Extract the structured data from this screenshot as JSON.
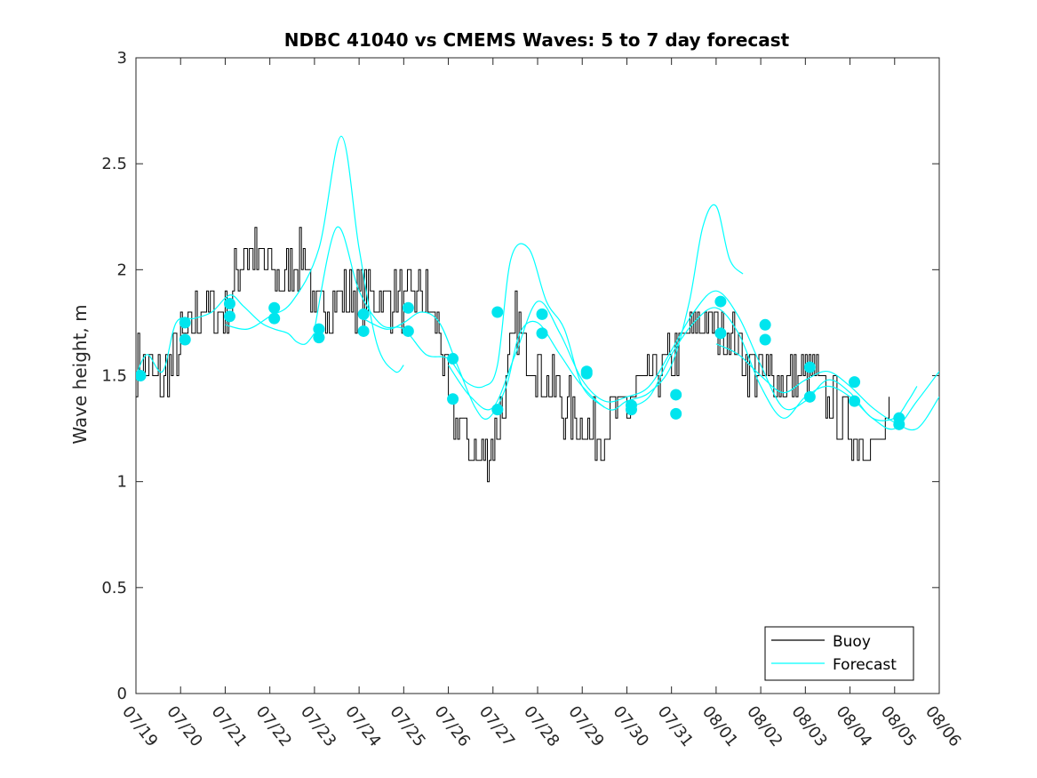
{
  "chart_data": {
    "type": "line",
    "title": "NDBC 41040 vs CMEMS Waves: 5 to 7 day forecast",
    "xlabel": "",
    "ylabel": "Wave height, m",
    "xlim": [
      "07/19",
      "08/06"
    ],
    "ylim": [
      0,
      3
    ],
    "x_ticks": [
      "07/19",
      "07/20",
      "07/21",
      "07/22",
      "07/23",
      "07/24",
      "07/25",
      "07/26",
      "07/27",
      "07/28",
      "07/29",
      "07/30",
      "07/31",
      "08/01",
      "08/02",
      "08/03",
      "08/04",
      "08/05",
      "08/06"
    ],
    "y_ticks": [
      "0",
      "0.5",
      "1",
      "1.5",
      "2",
      "2.5",
      "3"
    ],
    "x_unit": "day offset from 07/19",
    "legend": {
      "placement": "bottom-right",
      "entries": [
        {
          "label": "Buoy",
          "color": "#000000"
        },
        {
          "label": "Forecast",
          "color": "#00ffff"
        }
      ]
    },
    "colors": {
      "buoy": "#000000",
      "forecast": "#00ffff",
      "markers": "#00e5ee"
    },
    "series": [
      {
        "name": "Buoy",
        "style": "step-noisy",
        "points": [
          [
            0,
            1.55
          ],
          [
            0.3,
            1.5
          ],
          [
            0.6,
            1.48
          ],
          [
            0.9,
            1.6
          ],
          [
            1.2,
            1.72
          ],
          [
            1.5,
            1.83
          ],
          [
            1.8,
            1.78
          ],
          [
            2.1,
            1.85
          ],
          [
            2.4,
            2.1
          ],
          [
            2.7,
            2.05
          ],
          [
            3.0,
            2.0
          ],
          [
            3.3,
            1.95
          ],
          [
            3.6,
            2.05
          ],
          [
            3.8,
            2.08
          ],
          [
            4.0,
            1.75
          ],
          [
            4.3,
            1.85
          ],
          [
            4.6,
            1.88
          ],
          [
            5.0,
            1.85
          ],
          [
            5.5,
            1.88
          ],
          [
            6.0,
            1.85
          ],
          [
            6.4,
            1.9
          ],
          [
            6.8,
            1.7
          ],
          [
            7.0,
            1.35
          ],
          [
            7.3,
            1.25
          ],
          [
            7.6,
            1.12
          ],
          [
            7.9,
            1.15
          ],
          [
            8.2,
            1.35
          ],
          [
            8.5,
            1.75
          ],
          [
            8.8,
            1.6
          ],
          [
            9.1,
            1.5
          ],
          [
            9.5,
            1.38
          ],
          [
            9.9,
            1.3
          ],
          [
            10.2,
            1.22
          ],
          [
            10.6,
            1.28
          ],
          [
            11.0,
            1.35
          ],
          [
            11.4,
            1.45
          ],
          [
            11.8,
            1.55
          ],
          [
            12.2,
            1.6
          ],
          [
            12.6,
            1.75
          ],
          [
            13.0,
            1.73
          ],
          [
            13.3,
            1.7
          ],
          [
            13.6,
            1.6
          ],
          [
            14.0,
            1.5
          ],
          [
            14.4,
            1.48
          ],
          [
            14.8,
            1.5
          ],
          [
            15.2,
            1.48
          ],
          [
            15.6,
            1.35
          ],
          [
            16.0,
            1.25
          ],
          [
            16.3,
            1.2
          ],
          [
            16.6,
            1.15
          ],
          [
            16.9,
            1.25
          ]
        ]
      },
      {
        "name": "Forecast",
        "style": "smooth",
        "points": [
          [
            0,
            1.5
          ],
          [
            0.25,
            1.6
          ],
          [
            0.6,
            1.52
          ],
          [
            0.9,
            1.75
          ],
          [
            1.3,
            1.77
          ],
          [
            1.7,
            1.8
          ],
          [
            2.1,
            1.88
          ],
          [
            2.4,
            1.83
          ],
          [
            2.8,
            1.75
          ],
          [
            3.1,
            1.72
          ],
          [
            3.4,
            1.7
          ],
          [
            3.6,
            1.66
          ],
          [
            3.8,
            1.65
          ],
          [
            4.0,
            1.7
          ]
        ]
      },
      {
        "name": "Forecast",
        "style": "smooth",
        "points": [
          [
            2.0,
            1.74
          ],
          [
            2.5,
            1.72
          ],
          [
            3.0,
            1.78
          ],
          [
            3.5,
            1.85
          ],
          [
            4.1,
            2.1
          ],
          [
            4.6,
            2.63
          ],
          [
            5.0,
            2.1
          ],
          [
            5.4,
            1.65
          ],
          [
            5.8,
            1.52
          ],
          [
            6.0,
            1.55
          ]
        ]
      },
      {
        "name": "Forecast",
        "style": "smooth",
        "points": [
          [
            4.0,
            1.72
          ],
          [
            4.5,
            2.2
          ],
          [
            5.0,
            1.9
          ],
          [
            5.5,
            1.74
          ],
          [
            6.0,
            1.72
          ],
          [
            6.5,
            1.6
          ],
          [
            7.0,
            1.58
          ],
          [
            7.4,
            1.47
          ],
          [
            7.8,
            1.45
          ],
          [
            8.1,
            1.55
          ],
          [
            8.4,
            2.05
          ],
          [
            8.8,
            2.1
          ],
          [
            9.2,
            1.85
          ],
          [
            9.6,
            1.72
          ],
          [
            10.0,
            1.45
          ],
          [
            10.5,
            1.35
          ]
        ]
      },
      {
        "name": "Forecast",
        "style": "smooth",
        "points": [
          [
            5.0,
            1.78
          ],
          [
            5.6,
            1.72
          ],
          [
            6.0,
            1.75
          ],
          [
            6.4,
            1.8
          ],
          [
            6.8,
            1.75
          ],
          [
            7.2,
            1.55
          ],
          [
            7.6,
            1.35
          ],
          [
            7.9,
            1.3
          ],
          [
            8.3,
            1.45
          ],
          [
            8.6,
            1.7
          ],
          [
            9.0,
            1.75
          ],
          [
            9.5,
            1.6
          ],
          [
            10.0,
            1.45
          ],
          [
            10.6,
            1.34
          ],
          [
            11.0,
            1.38
          ],
          [
            11.5,
            1.42
          ],
          [
            12.0,
            1.55
          ],
          [
            12.4,
            1.85
          ],
          [
            12.7,
            2.2
          ],
          [
            13.0,
            2.3
          ],
          [
            13.3,
            2.05
          ],
          [
            13.6,
            1.98
          ]
        ]
      },
      {
        "name": "Forecast",
        "style": "smooth",
        "points": [
          [
            7.0,
            1.55
          ],
          [
            7.5,
            1.4
          ],
          [
            8.0,
            1.35
          ],
          [
            8.5,
            1.6
          ],
          [
            9.0,
            1.85
          ],
          [
            9.5,
            1.7
          ],
          [
            10.0,
            1.48
          ],
          [
            10.5,
            1.38
          ],
          [
            11.0,
            1.4
          ],
          [
            11.5,
            1.45
          ],
          [
            12.0,
            1.62
          ],
          [
            12.5,
            1.8
          ],
          [
            13.0,
            1.9
          ],
          [
            13.5,
            1.78
          ],
          [
            14.0,
            1.55
          ],
          [
            14.5,
            1.35
          ],
          [
            15.0,
            1.38
          ],
          [
            15.5,
            1.48
          ],
          [
            16.0,
            1.42
          ],
          [
            16.5,
            1.3
          ],
          [
            17.0,
            1.3
          ],
          [
            17.3,
            1.38
          ],
          [
            17.5,
            1.45
          ]
        ]
      },
      {
        "name": "Forecast",
        "style": "smooth",
        "points": [
          [
            11.0,
            1.35
          ],
          [
            11.5,
            1.4
          ],
          [
            12.0,
            1.6
          ],
          [
            12.5,
            1.75
          ],
          [
            13.0,
            1.82
          ],
          [
            13.5,
            1.7
          ],
          [
            14.0,
            1.45
          ],
          [
            14.5,
            1.3
          ],
          [
            15.0,
            1.4
          ],
          [
            15.5,
            1.45
          ],
          [
            16.0,
            1.4
          ],
          [
            16.5,
            1.3
          ],
          [
            17.0,
            1.25
          ],
          [
            17.5,
            1.38
          ],
          [
            18.0,
            1.52
          ]
        ]
      },
      {
        "name": "Forecast",
        "style": "smooth",
        "points": [
          [
            13.0,
            1.65
          ],
          [
            13.5,
            1.6
          ],
          [
            14.0,
            1.5
          ],
          [
            14.5,
            1.42
          ],
          [
            15.0,
            1.48
          ],
          [
            15.5,
            1.52
          ],
          [
            16.0,
            1.45
          ],
          [
            16.5,
            1.35
          ],
          [
            17.0,
            1.28
          ],
          [
            17.5,
            1.25
          ],
          [
            18.0,
            1.4
          ]
        ]
      }
    ],
    "markers": [
      [
        0.1,
        1.5
      ],
      [
        1.1,
        1.75
      ],
      [
        1.1,
        1.67
      ],
      [
        2.1,
        1.84
      ],
      [
        2.1,
        1.78
      ],
      [
        3.1,
        1.82
      ],
      [
        3.1,
        1.77
      ],
      [
        4.1,
        1.72
      ],
      [
        4.1,
        1.68
      ],
      [
        5.1,
        1.79
      ],
      [
        5.1,
        1.71
      ],
      [
        6.1,
        1.82
      ],
      [
        6.1,
        1.71
      ],
      [
        7.1,
        1.58
      ],
      [
        7.1,
        1.39
      ],
      [
        8.1,
        1.8
      ],
      [
        8.1,
        1.34
      ],
      [
        9.1,
        1.79
      ],
      [
        9.1,
        1.7
      ],
      [
        10.1,
        1.52
      ],
      [
        10.1,
        1.51
      ],
      [
        11.1,
        1.36
      ],
      [
        11.1,
        1.34
      ],
      [
        12.1,
        1.41
      ],
      [
        12.1,
        1.32
      ],
      [
        13.1,
        1.85
      ],
      [
        13.1,
        1.7
      ],
      [
        14.1,
        1.74
      ],
      [
        14.1,
        1.67
      ],
      [
        15.1,
        1.54
      ],
      [
        15.1,
        1.4
      ],
      [
        16.1,
        1.47
      ],
      [
        16.1,
        1.38
      ],
      [
        17.1,
        1.3
      ],
      [
        17.1,
        1.27
      ]
    ]
  }
}
